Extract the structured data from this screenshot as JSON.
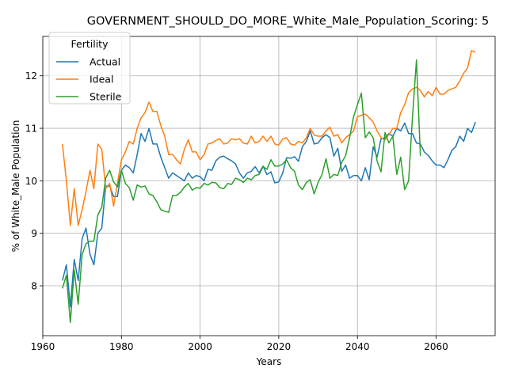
{
  "chart_data": {
    "type": "line",
    "title": "GOVERNMENT_SHOULD_DO_MORE_White_Male_Population_Scoring: 5",
    "xlabel": "Years",
    "ylabel": "% of White_Male Population",
    "xlim": [
      1960,
      2075
    ],
    "ylim": [
      7.05,
      12.75
    ],
    "xticks": [
      1960,
      1980,
      2000,
      2020,
      2040,
      2060
    ],
    "yticks": [
      8,
      9,
      10,
      11,
      12
    ],
    "grid": true,
    "legend": {
      "title": "Fertility",
      "position": "upper-left"
    },
    "series": [
      {
        "name": "Actual",
        "color": "#1f77b4",
        "points": [
          [
            1965,
            8.1
          ],
          [
            1966,
            8.4
          ],
          [
            1967,
            7.6
          ],
          [
            1968,
            8.5
          ],
          [
            1969,
            8.1
          ],
          [
            1970,
            8.9
          ],
          [
            1971,
            9.1
          ],
          [
            1972,
            8.6
          ],
          [
            1973,
            8.4
          ],
          [
            1974,
            9.0
          ],
          [
            1975,
            9.1
          ],
          [
            1976,
            9.9
          ],
          [
            1977,
            9.9
          ],
          [
            1978,
            9.7
          ],
          [
            1979,
            9.7
          ],
          [
            1980,
            10.2
          ],
          [
            1981,
            10.3
          ],
          [
            1982,
            10.25
          ],
          [
            1983,
            10.15
          ],
          [
            1984,
            10.5
          ],
          [
            1985,
            10.9
          ],
          [
            1986,
            10.75
          ],
          [
            1987,
            11.0
          ],
          [
            1988,
            10.7
          ],
          [
            1989,
            10.7
          ],
          [
            1990,
            10.45
          ],
          [
            1991,
            10.25
          ],
          [
            1992,
            10.05
          ],
          [
            1993,
            10.15
          ],
          [
            1994,
            10.1
          ],
          [
            1995,
            10.05
          ],
          [
            1996,
            10.0
          ],
          [
            1997,
            10.15
          ],
          [
            1998,
            10.05
          ],
          [
            1999,
            10.1
          ],
          [
            2000,
            10.08
          ],
          [
            2001,
            10.0
          ],
          [
            2002,
            10.22
          ],
          [
            2003,
            10.2
          ],
          [
            2004,
            10.38
          ],
          [
            2005,
            10.45
          ],
          [
            2006,
            10.47
          ],
          [
            2007,
            10.42
          ],
          [
            2008,
            10.38
          ],
          [
            2009,
            10.32
          ],
          [
            2010,
            10.15
          ],
          [
            2011,
            10.05
          ],
          [
            2012,
            10.15
          ],
          [
            2013,
            10.18
          ],
          [
            2014,
            10.27
          ],
          [
            2015,
            10.15
          ],
          [
            2016,
            10.28
          ],
          [
            2017,
            10.12
          ],
          [
            2018,
            10.17
          ],
          [
            2019,
            9.96
          ],
          [
            2020,
            9.98
          ],
          [
            2021,
            10.15
          ],
          [
            2022,
            10.44
          ],
          [
            2023,
            10.43
          ],
          [
            2024,
            10.46
          ],
          [
            2025,
            10.37
          ],
          [
            2026,
            10.65
          ],
          [
            2027,
            10.75
          ],
          [
            2028,
            10.95
          ],
          [
            2029,
            10.7
          ],
          [
            2030,
            10.72
          ],
          [
            2031,
            10.82
          ],
          [
            2032,
            10.88
          ],
          [
            2033,
            10.82
          ],
          [
            2034,
            10.47
          ],
          [
            2035,
            10.62
          ],
          [
            2036,
            10.18
          ],
          [
            2037,
            10.3
          ],
          [
            2038,
            10.05
          ],
          [
            2039,
            10.1
          ],
          [
            2040,
            10.1
          ],
          [
            2041,
            10.0
          ],
          [
            2042,
            10.25
          ],
          [
            2043,
            10.02
          ],
          [
            2044,
            10.65
          ],
          [
            2045,
            10.45
          ],
          [
            2046,
            10.8
          ],
          [
            2047,
            10.82
          ],
          [
            2048,
            10.9
          ],
          [
            2049,
            10.85
          ],
          [
            2050,
            11.0
          ],
          [
            2051,
            10.95
          ],
          [
            2052,
            11.1
          ],
          [
            2053,
            10.9
          ],
          [
            2054,
            10.9
          ],
          [
            2055,
            10.72
          ],
          [
            2056,
            10.7
          ],
          [
            2057,
            10.55
          ],
          [
            2058,
            10.48
          ],
          [
            2059,
            10.38
          ],
          [
            2060,
            10.3
          ],
          [
            2061,
            10.3
          ],
          [
            2062,
            10.25
          ],
          [
            2063,
            10.4
          ],
          [
            2064,
            10.58
          ],
          [
            2065,
            10.65
          ],
          [
            2066,
            10.85
          ],
          [
            2067,
            10.75
          ],
          [
            2068,
            11.0
          ],
          [
            2069,
            10.92
          ],
          [
            2070,
            11.12
          ]
        ]
      },
      {
        "name": "Ideal",
        "color": "#ff7f0e",
        "points": [
          [
            1965,
            10.7
          ],
          [
            1966,
            10.0
          ],
          [
            1967,
            9.15
          ],
          [
            1968,
            9.85
          ],
          [
            1969,
            9.15
          ],
          [
            1970,
            9.45
          ],
          [
            1971,
            9.8
          ],
          [
            1972,
            10.2
          ],
          [
            1973,
            9.85
          ],
          [
            1974,
            10.7
          ],
          [
            1975,
            10.6
          ],
          [
            1976,
            9.85
          ],
          [
            1977,
            9.95
          ],
          [
            1978,
            9.52
          ],
          [
            1979,
            9.95
          ],
          [
            1980,
            10.4
          ],
          [
            1981,
            10.55
          ],
          [
            1982,
            10.75
          ],
          [
            1983,
            10.7
          ],
          [
            1984,
            11.0
          ],
          [
            1985,
            11.2
          ],
          [
            1986,
            11.3
          ],
          [
            1987,
            11.5
          ],
          [
            1988,
            11.32
          ],
          [
            1989,
            11.32
          ],
          [
            1990,
            11.05
          ],
          [
            1991,
            10.85
          ],
          [
            1992,
            10.5
          ],
          [
            1993,
            10.5
          ],
          [
            1994,
            10.4
          ],
          [
            1995,
            10.32
          ],
          [
            1996,
            10.6
          ],
          [
            1997,
            10.78
          ],
          [
            1998,
            10.55
          ],
          [
            1999,
            10.55
          ],
          [
            2000,
            10.4
          ],
          [
            2001,
            10.5
          ],
          [
            2002,
            10.7
          ],
          [
            2003,
            10.72
          ],
          [
            2004,
            10.77
          ],
          [
            2005,
            10.8
          ],
          [
            2006,
            10.7
          ],
          [
            2007,
            10.72
          ],
          [
            2008,
            10.8
          ],
          [
            2009,
            10.78
          ],
          [
            2010,
            10.8
          ],
          [
            2011,
            10.72
          ],
          [
            2012,
            10.7
          ],
          [
            2013,
            10.85
          ],
          [
            2014,
            10.72
          ],
          [
            2015,
            10.75
          ],
          [
            2016,
            10.85
          ],
          [
            2017,
            10.75
          ],
          [
            2018,
            10.85
          ],
          [
            2019,
            10.7
          ],
          [
            2020,
            10.68
          ],
          [
            2021,
            10.8
          ],
          [
            2022,
            10.82
          ],
          [
            2023,
            10.7
          ],
          [
            2024,
            10.68
          ],
          [
            2025,
            10.75
          ],
          [
            2026,
            10.72
          ],
          [
            2027,
            10.82
          ],
          [
            2028,
            11.0
          ],
          [
            2029,
            10.87
          ],
          [
            2030,
            10.85
          ],
          [
            2031,
            10.85
          ],
          [
            2032,
            10.95
          ],
          [
            2033,
            11.02
          ],
          [
            2034,
            10.85
          ],
          [
            2035,
            10.88
          ],
          [
            2036,
            10.72
          ],
          [
            2037,
            10.82
          ],
          [
            2038,
            10.88
          ],
          [
            2039,
            10.95
          ],
          [
            2040,
            11.22
          ],
          [
            2041,
            11.25
          ],
          [
            2042,
            11.27
          ],
          [
            2043,
            11.2
          ],
          [
            2044,
            11.12
          ],
          [
            2045,
            10.95
          ],
          [
            2046,
            10.82
          ],
          [
            2047,
            10.78
          ],
          [
            2048,
            10.88
          ],
          [
            2049,
            11.0
          ],
          [
            2050,
            11.0
          ],
          [
            2051,
            11.3
          ],
          [
            2052,
            11.45
          ],
          [
            2053,
            11.68
          ],
          [
            2054,
            11.75
          ],
          [
            2055,
            11.78
          ],
          [
            2056,
            11.72
          ],
          [
            2057,
            11.6
          ],
          [
            2058,
            11.7
          ],
          [
            2059,
            11.62
          ],
          [
            2060,
            11.78
          ],
          [
            2061,
            11.65
          ],
          [
            2062,
            11.65
          ],
          [
            2063,
            11.72
          ],
          [
            2064,
            11.75
          ],
          [
            2065,
            11.78
          ],
          [
            2066,
            11.9
          ],
          [
            2067,
            12.05
          ],
          [
            2068,
            12.15
          ],
          [
            2069,
            12.48
          ],
          [
            2070,
            12.45
          ]
        ]
      },
      {
        "name": "Sterile",
        "color": "#2ca02c",
        "points": [
          [
            1965,
            7.95
          ],
          [
            1966,
            8.2
          ],
          [
            1967,
            7.3
          ],
          [
            1968,
            8.3
          ],
          [
            1969,
            7.65
          ],
          [
            1970,
            8.6
          ],
          [
            1971,
            8.8
          ],
          [
            1972,
            8.85
          ],
          [
            1973,
            8.85
          ],
          [
            1974,
            9.35
          ],
          [
            1975,
            9.5
          ],
          [
            1976,
            10.05
          ],
          [
            1977,
            10.2
          ],
          [
            1978,
            9.98
          ],
          [
            1979,
            9.88
          ],
          [
            1980,
            10.2
          ],
          [
            1981,
            9.95
          ],
          [
            1982,
            9.87
          ],
          [
            1983,
            9.63
          ],
          [
            1984,
            9.92
          ],
          [
            1985,
            9.88
          ],
          [
            1986,
            9.9
          ],
          [
            1987,
            9.75
          ],
          [
            1988,
            9.72
          ],
          [
            1989,
            9.6
          ],
          [
            1990,
            9.45
          ],
          [
            1991,
            9.42
          ],
          [
            1992,
            9.4
          ],
          [
            1993,
            9.72
          ],
          [
            1994,
            9.72
          ],
          [
            1995,
            9.78
          ],
          [
            1996,
            9.88
          ],
          [
            1997,
            9.95
          ],
          [
            1998,
            9.82
          ],
          [
            1999,
            9.87
          ],
          [
            2000,
            9.86
          ],
          [
            2001,
            9.95
          ],
          [
            2002,
            9.92
          ],
          [
            2003,
            9.97
          ],
          [
            2004,
            9.96
          ],
          [
            2005,
            9.87
          ],
          [
            2006,
            9.85
          ],
          [
            2007,
            9.95
          ],
          [
            2008,
            9.93
          ],
          [
            2009,
            10.05
          ],
          [
            2010,
            10.02
          ],
          [
            2011,
            9.97
          ],
          [
            2012,
            10.05
          ],
          [
            2013,
            10.02
          ],
          [
            2014,
            10.1
          ],
          [
            2015,
            10.12
          ],
          [
            2016,
            10.27
          ],
          [
            2017,
            10.22
          ],
          [
            2018,
            10.4
          ],
          [
            2019,
            10.28
          ],
          [
            2020,
            10.28
          ],
          [
            2021,
            10.32
          ],
          [
            2022,
            10.4
          ],
          [
            2023,
            10.25
          ],
          [
            2024,
            10.18
          ],
          [
            2025,
            9.92
          ],
          [
            2026,
            9.83
          ],
          [
            2027,
            9.97
          ],
          [
            2028,
            10.02
          ],
          [
            2029,
            9.75
          ],
          [
            2030,
            9.97
          ],
          [
            2031,
            10.12
          ],
          [
            2032,
            10.42
          ],
          [
            2033,
            10.05
          ],
          [
            2034,
            10.12
          ],
          [
            2035,
            10.1
          ],
          [
            2036,
            10.35
          ],
          [
            2037,
            10.48
          ],
          [
            2038,
            10.82
          ],
          [
            2039,
            11.22
          ],
          [
            2040,
            11.45
          ],
          [
            2041,
            11.67
          ],
          [
            2042,
            10.82
          ],
          [
            2043,
            10.93
          ],
          [
            2044,
            10.82
          ],
          [
            2045,
            10.38
          ],
          [
            2046,
            10.17
          ],
          [
            2047,
            10.92
          ],
          [
            2048,
            10.72
          ],
          [
            2049,
            10.85
          ],
          [
            2050,
            10.12
          ],
          [
            2051,
            10.45
          ],
          [
            2052,
            9.83
          ],
          [
            2053,
            10.0
          ],
          [
            2054,
            11.22
          ],
          [
            2055,
            12.3
          ],
          [
            2056,
            10.47
          ]
        ]
      }
    ]
  }
}
